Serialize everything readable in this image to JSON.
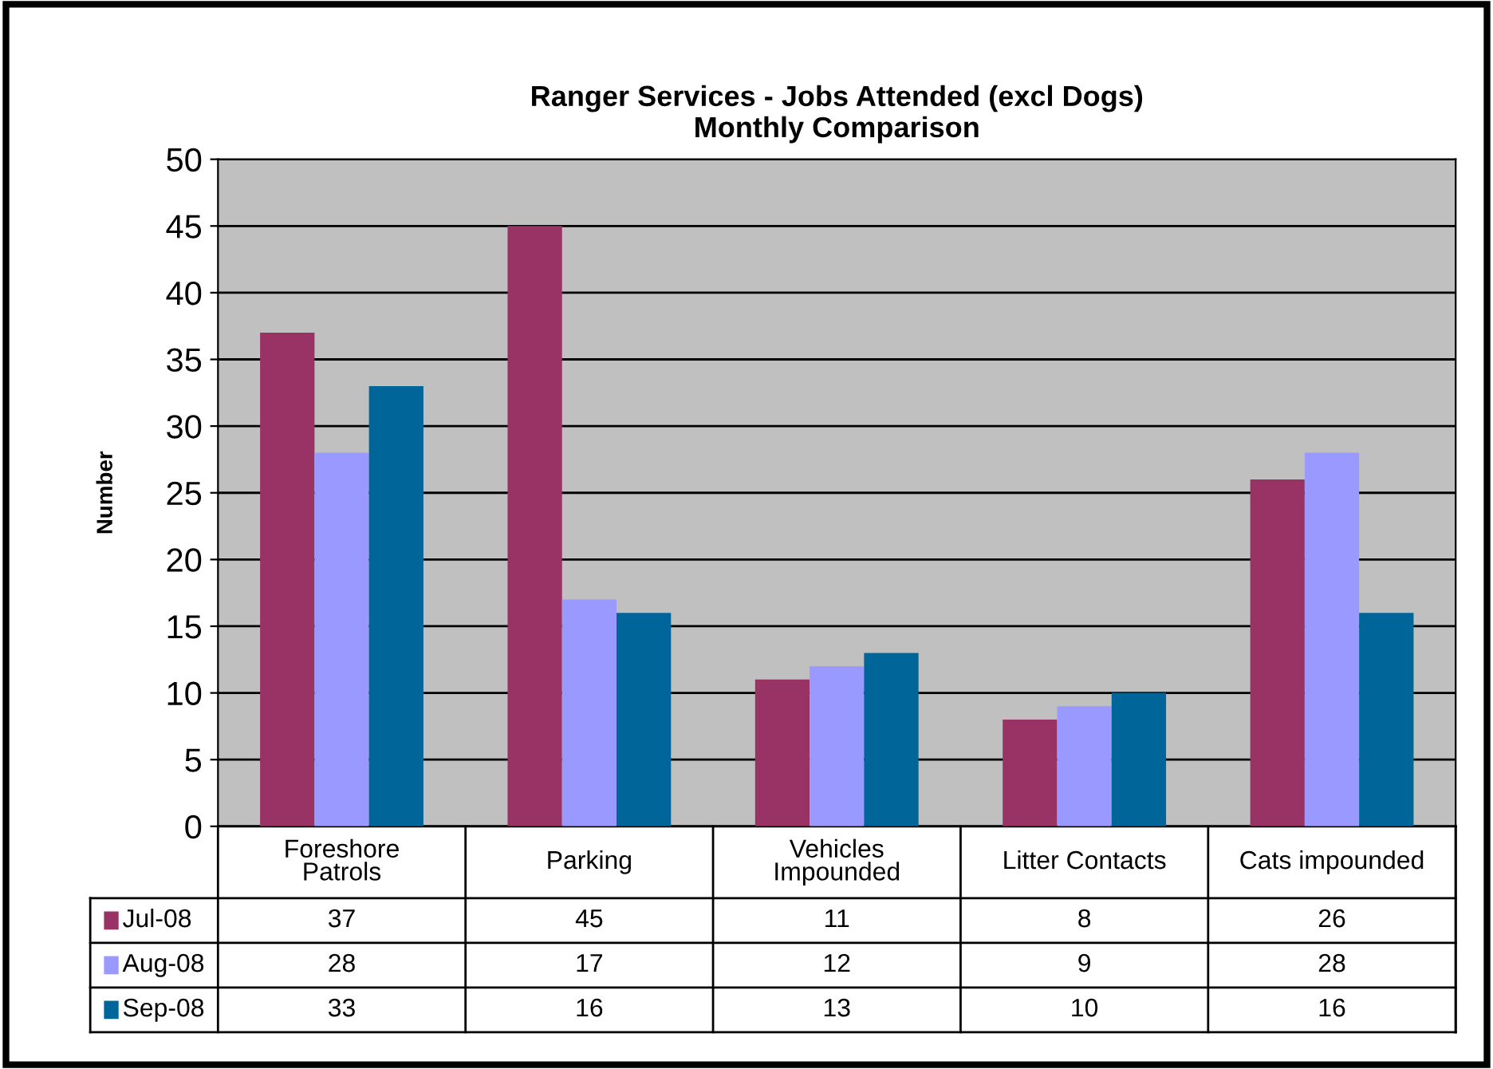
{
  "chart_data": {
    "type": "bar",
    "title": "Ranger Services - Jobs Attended (excl Dogs)\nMonthly Comparison",
    "ylabel": "Number",
    "categories": [
      "Foreshore\nPatrols",
      "Parking",
      "Vehicles\nImpounded",
      "Litter Contacts",
      "Cats impounded"
    ],
    "series": [
      {
        "name": "Jul-08",
        "color": "#993366",
        "values": [
          37,
          45,
          11,
          8,
          26
        ]
      },
      {
        "name": "Aug-08",
        "color": "#9999ff",
        "values": [
          28,
          17,
          12,
          9,
          28
        ]
      },
      {
        "name": "Sep-08",
        "color": "#006699",
        "values": [
          33,
          16,
          13,
          10,
          16
        ]
      }
    ],
    "ylim": [
      0,
      50
    ],
    "yticks": [
      0,
      5,
      10,
      15,
      20,
      25,
      30,
      35,
      40,
      45,
      50
    ],
    "grid": "y",
    "legend": "bottom",
    "data_labels": true
  }
}
